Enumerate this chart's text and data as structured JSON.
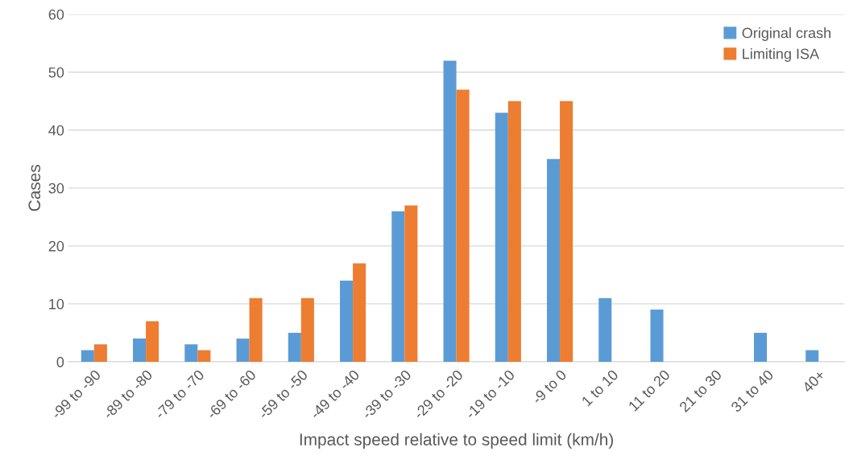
{
  "chart_data": {
    "type": "bar",
    "xlabel": "Impact speed relative to speed limit (km/h)",
    "ylabel": "Cases",
    "categories": [
      "-99 to -90",
      "-89 to -80",
      "-79 to -70",
      "-69 to -60",
      "-59 to -50",
      "-49 to -40",
      "-39 to -30",
      "-29 to -20",
      "-19 to -10",
      "-9 to 0",
      "1 to 10",
      "11 to 20",
      "21 to 30",
      "31 to 40",
      "40+"
    ],
    "series": [
      {
        "name": "Original crash",
        "color": "#5b9bd5",
        "values": [
          2,
          4,
          3,
          4,
          5,
          14,
          26,
          52,
          43,
          35,
          11,
          9,
          0,
          5,
          2
        ]
      },
      {
        "name": "Limiting ISA",
        "color": "#ed7d31",
        "values": [
          3,
          7,
          2,
          11,
          11,
          17,
          27,
          47,
          45,
          45,
          0,
          0,
          0,
          0,
          0
        ]
      }
    ],
    "ylim": [
      0,
      60
    ],
    "yticks": [
      0,
      10,
      20,
      30,
      40,
      50,
      60
    ],
    "grid": "y",
    "legend": "top right"
  }
}
